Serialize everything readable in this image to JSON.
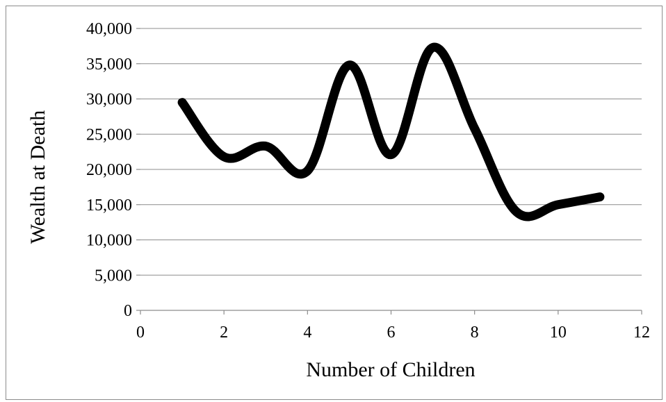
{
  "chart_data": {
    "type": "scatter",
    "xlabel": "Number of Children",
    "ylabel": "Wealth at Death",
    "xlim": [
      0,
      12
    ],
    "ylim": [
      0,
      40000
    ],
    "xticks": [
      0,
      2,
      4,
      6,
      8,
      10,
      12
    ],
    "yticks": [
      0,
      5000,
      10000,
      15000,
      20000,
      25000,
      30000,
      35000,
      40000
    ],
    "xtick_labels": [
      "0",
      "2",
      "4",
      "6",
      "8",
      "10",
      "12"
    ],
    "ytick_labels": [
      "0",
      "5,000",
      "10,000",
      "15,000",
      "20,000",
      "25,000",
      "30,000",
      "35,000",
      "40,000"
    ],
    "grid": "horizontal",
    "legend": "none",
    "series": [
      {
        "x": [
          1,
          2,
          3,
          4,
          5,
          6,
          7,
          8,
          9,
          10,
          11
        ],
        "y": [
          29500,
          21800,
          23300,
          19800,
          34800,
          22100,
          37300,
          25800,
          14000,
          15000,
          16100
        ],
        "color": "#000000",
        "line": "smooth"
      }
    ]
  },
  "colors": {
    "gridline": "#8c8c8c",
    "axis": "#8c8c8c",
    "frame": "#8c8c8c",
    "line": "#000000"
  }
}
